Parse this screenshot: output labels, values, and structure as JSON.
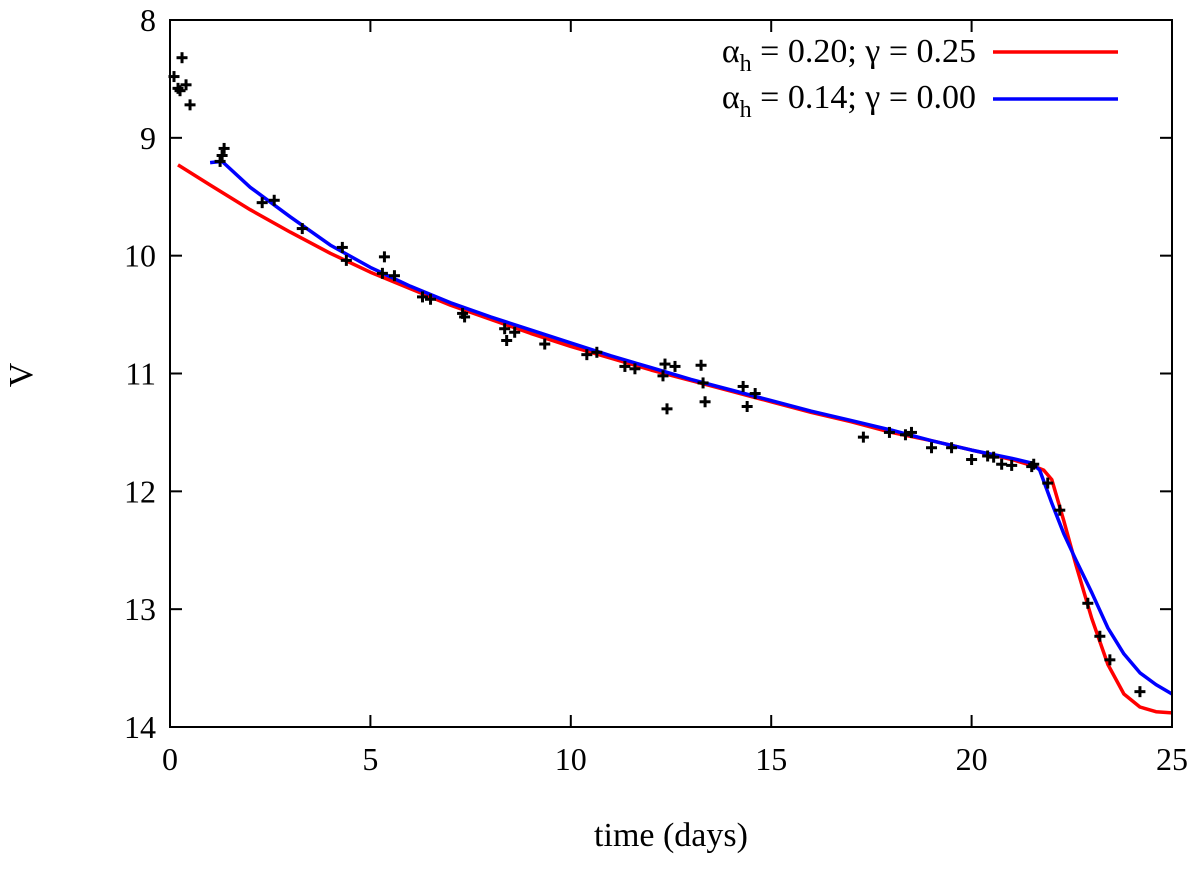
{
  "chart_data": {
    "type": "line",
    "xlabel": "time (days)",
    "ylabel": "V",
    "xlim": [
      0,
      25
    ],
    "ylim": [
      8,
      14
    ],
    "y_inverted": true,
    "xticks": [
      "0",
      "5",
      "10",
      "15",
      "20",
      "25"
    ],
    "yticks": [
      "8",
      "9",
      "10",
      "11",
      "12",
      "13",
      "14"
    ],
    "legend_position": "top-right",
    "series": [
      {
        "name": "α_h = 0.20; γ = 0.25",
        "legend": {
          "alpha_sym": "α",
          "sub": "h",
          "rest": " = 0.20; γ = 0.25"
        },
        "color": "#ff0000",
        "x": [
          0.2,
          1,
          2,
          3,
          4,
          5,
          6,
          7,
          8,
          9,
          10,
          11,
          12,
          13,
          14,
          15,
          16,
          17,
          18,
          19,
          20,
          21,
          21.5,
          21.8,
          22.0,
          22.3,
          22.6,
          23.0,
          23.4,
          23.8,
          24.2,
          24.6,
          25.0
        ],
        "y": [
          9.23,
          9.4,
          9.61,
          9.8,
          9.98,
          10.14,
          10.28,
          10.42,
          10.54,
          10.66,
          10.77,
          10.87,
          10.97,
          11.06,
          11.15,
          11.24,
          11.33,
          11.41,
          11.5,
          11.57,
          11.65,
          11.73,
          11.78,
          11.82,
          11.9,
          12.25,
          12.62,
          13.08,
          13.47,
          13.72,
          13.83,
          13.87,
          13.88
        ]
      },
      {
        "name": "α_h = 0.14; γ = 0.00",
        "legend": {
          "alpha_sym": "α",
          "sub": "h",
          "rest": " = 0.14; γ = 0.00"
        },
        "color": "#0000ff",
        "x": [
          1.0,
          1.3,
          2,
          3,
          4,
          5,
          6,
          7,
          8,
          9,
          10,
          11,
          12,
          13,
          14,
          15,
          16,
          17,
          18,
          19,
          20,
          21,
          21.5,
          21.7,
          22.0,
          22.3,
          22.6,
          23.0,
          23.4,
          23.8,
          24.2,
          24.6,
          25.0
        ],
        "y": [
          9.21,
          9.2,
          9.42,
          9.67,
          9.91,
          10.1,
          10.26,
          10.4,
          10.52,
          10.63,
          10.74,
          10.85,
          10.95,
          11.05,
          11.14,
          11.23,
          11.32,
          11.4,
          11.48,
          11.57,
          11.65,
          11.72,
          11.76,
          11.82,
          12.1,
          12.36,
          12.58,
          12.86,
          13.16,
          13.38,
          13.54,
          13.64,
          13.72
        ]
      }
    ],
    "observations": {
      "x": [
        0.1,
        0.2,
        0.25,
        0.3,
        0.4,
        0.5,
        1.25,
        1.3,
        1.35,
        2.3,
        2.6,
        3.3,
        4.3,
        4.4,
        5.3,
        5.35,
        5.6,
        6.3,
        6.5,
        7.3,
        7.35,
        8.35,
        8.4,
        8.6,
        9.35,
        10.4,
        10.65,
        11.35,
        11.6,
        12.3,
        12.35,
        12.4,
        12.6,
        13.25,
        13.3,
        13.35,
        14.3,
        14.4,
        14.6,
        17.3,
        17.95,
        18.35,
        18.5,
        19.0,
        19.5,
        20.0,
        20.4,
        20.55,
        20.75,
        21.0,
        21.5,
        21.55,
        21.9,
        22.2,
        22.9,
        23.2,
        23.45,
        24.2
      ],
      "y": [
        8.48,
        8.58,
        8.6,
        8.32,
        8.55,
        8.72,
        9.2,
        9.15,
        9.09,
        9.55,
        9.53,
        9.77,
        9.93,
        10.04,
        10.15,
        10.01,
        10.17,
        10.35,
        10.37,
        10.49,
        10.52,
        10.62,
        10.72,
        10.65,
        10.75,
        10.84,
        10.82,
        10.94,
        10.96,
        11.02,
        10.92,
        11.3,
        10.94,
        10.93,
        11.08,
        11.24,
        11.11,
        11.28,
        11.17,
        11.54,
        11.5,
        11.52,
        11.5,
        11.63,
        11.63,
        11.73,
        11.7,
        11.71,
        11.77,
        11.78,
        11.79,
        11.77,
        11.93,
        12.16,
        12.95,
        13.23,
        13.43,
        13.7
      ],
      "marker": "+",
      "color": "#000000"
    }
  }
}
